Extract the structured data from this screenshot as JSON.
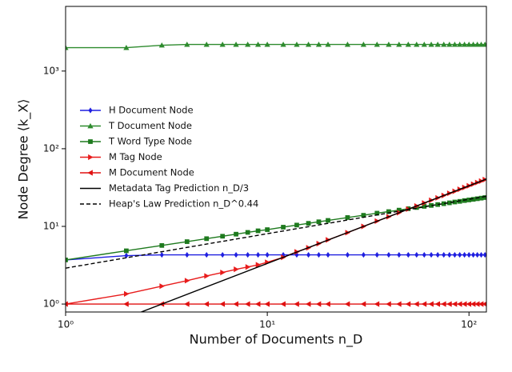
{
  "chart_data": {
    "type": "line",
    "x_label": "Number of Documents n_D",
    "y_label": "Node Degree ⟨k_X⟩",
    "xscale": "log",
    "yscale": "log",
    "xlim": [
      1,
      122
    ],
    "ylim": [
      0.79,
      6800
    ],
    "xticks": [
      {
        "value": 1,
        "label": "10⁰"
      },
      {
        "value": 10,
        "label": "10¹"
      },
      {
        "value": 100,
        "label": "10²"
      }
    ],
    "yticks": [
      {
        "value": 1,
        "label": "10⁰"
      },
      {
        "value": 10,
        "label": "10¹"
      },
      {
        "value": 100,
        "label": "10²"
      },
      {
        "value": 1000,
        "label": "10³"
      }
    ],
    "legend": "upper left",
    "series": [
      {
        "name": "H Document Node",
        "color": "#1f1fe0",
        "marker": "diamond",
        "x": [
          1,
          2,
          3,
          4,
          5,
          6,
          7,
          8,
          9,
          10,
          12,
          14,
          16,
          18,
          20,
          25,
          30,
          35,
          40,
          45,
          50,
          55,
          60,
          65,
          70,
          75,
          80,
          85,
          90,
          95,
          100,
          105,
          110,
          115,
          120
        ],
        "values": [
          3.7,
          4.2,
          4.3,
          4.3,
          4.3,
          4.3,
          4.3,
          4.3,
          4.3,
          4.3,
          4.3,
          4.3,
          4.3,
          4.3,
          4.3,
          4.3,
          4.3,
          4.3,
          4.3,
          4.3,
          4.3,
          4.3,
          4.3,
          4.3,
          4.3,
          4.3,
          4.3,
          4.3,
          4.3,
          4.3,
          4.3,
          4.3,
          4.3,
          4.3,
          4.3
        ]
      },
      {
        "name": "T Document Node",
        "color": "#2e8b2e",
        "marker": "triangle-up",
        "x": [
          1,
          2,
          3,
          4,
          5,
          6,
          7,
          8,
          9,
          10,
          12,
          14,
          16,
          18,
          20,
          25,
          30,
          35,
          40,
          45,
          50,
          55,
          60,
          65,
          70,
          75,
          80,
          85,
          90,
          95,
          100,
          105,
          110,
          115,
          120
        ],
        "values": [
          2000,
          2000,
          2150,
          2200,
          2200,
          2200,
          2200,
          2200,
          2200,
          2200,
          2200,
          2200,
          2200,
          2200,
          2200,
          2200,
          2200,
          2200,
          2200,
          2200,
          2200,
          2200,
          2200,
          2200,
          2200,
          2200,
          2200,
          2200,
          2200,
          2200,
          2200,
          2200,
          2200,
          2200,
          2200
        ]
      },
      {
        "name": "T Word Type Node",
        "color": "#1e7a1e",
        "marker": "square",
        "x": [
          1,
          2,
          3,
          4,
          5,
          6,
          7,
          8,
          9,
          10,
          12,
          14,
          16,
          18,
          20,
          25,
          30,
          35,
          40,
          45,
          50,
          55,
          60,
          65,
          70,
          75,
          80,
          85,
          90,
          95,
          100,
          105,
          110,
          115,
          120
        ],
        "values": [
          3.7,
          4.85,
          5.68,
          6.36,
          6.95,
          7.47,
          7.94,
          8.37,
          8.77,
          9.08,
          9.77,
          10.4,
          10.95,
          11.46,
          11.94,
          13.0,
          13.9,
          14.8,
          15.5,
          16.2,
          16.9,
          17.5,
          18.1,
          18.6,
          19.1,
          19.6,
          20.1,
          20.6,
          21.0,
          21.5,
          21.9,
          22.3,
          22.7,
          23.1,
          23.5
        ]
      },
      {
        "name": "M Tag Node",
        "color": "#e81c1c",
        "marker": "triangle-right",
        "x": [
          1,
          2,
          3,
          4,
          5,
          6,
          7,
          8,
          9,
          10,
          12,
          14,
          16,
          18,
          20,
          25,
          30,
          35,
          40,
          45,
          50,
          55,
          60,
          65,
          70,
          75,
          80,
          85,
          90,
          95,
          100,
          105,
          110,
          115,
          120
        ],
        "values": [
          1,
          1.35,
          1.7,
          2.0,
          2.3,
          2.55,
          2.8,
          3.0,
          3.2,
          3.45,
          4.0,
          4.7,
          5.3,
          6.0,
          6.7,
          8.3,
          10,
          11.7,
          13.3,
          15,
          16.7,
          18.3,
          20,
          21.7,
          23.3,
          25,
          26.7,
          28.3,
          30,
          31.7,
          33.3,
          35,
          36.7,
          38.3,
          40
        ]
      },
      {
        "name": "M Document Node",
        "color": "#e01010",
        "marker": "triangle-left",
        "x": [
          1,
          2,
          3,
          4,
          5,
          6,
          7,
          8,
          9,
          10,
          12,
          14,
          16,
          18,
          20,
          25,
          30,
          35,
          40,
          45,
          50,
          55,
          60,
          65,
          70,
          75,
          80,
          85,
          90,
          95,
          100,
          105,
          110,
          115,
          120
        ],
        "values": [
          1,
          1,
          1,
          1,
          1,
          1,
          1,
          1,
          1,
          1,
          1,
          1,
          1,
          1,
          1,
          1,
          1,
          1,
          1,
          1,
          1,
          1,
          1,
          1,
          1,
          1,
          1,
          1,
          1,
          1,
          1,
          1,
          1,
          1,
          1
        ]
      },
      {
        "name": "Metadata Tag Prediction n_D/3",
        "color": "#000000",
        "linestyle": "solid",
        "x": [
          1,
          122
        ],
        "values": [
          0.333,
          40.67
        ]
      },
      {
        "name": "Heap's Law Prediction n_D^0.44",
        "color": "#000000",
        "linestyle": "dashed",
        "x": [
          1,
          122
        ],
        "values": [
          2.9,
          24.4
        ]
      }
    ]
  }
}
